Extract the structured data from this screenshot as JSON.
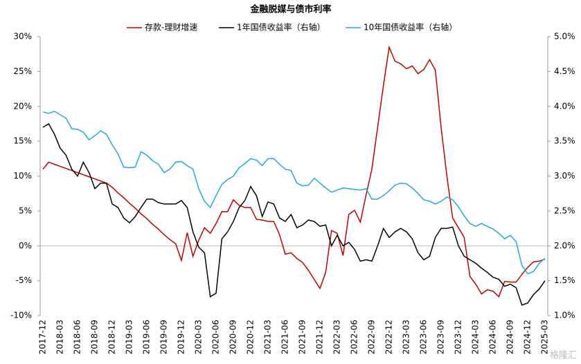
{
  "chart_data": {
    "type": "line",
    "title": "金融脱媒与债市利率",
    "watermark": "格隆汇",
    "categories": [
      "2017-12",
      null,
      null,
      "2018-03",
      null,
      null,
      "2018-06",
      null,
      null,
      "2018-09",
      null,
      null,
      "2018-12",
      null,
      null,
      "2019-03",
      null,
      null,
      "2019-06",
      null,
      null,
      "2019-09",
      null,
      null,
      "2019-12",
      null,
      null,
      "2020-03",
      null,
      null,
      "2020-06",
      null,
      null,
      "2020-09",
      null,
      null,
      "2020-12",
      null,
      null,
      "2021-03",
      null,
      null,
      "2021-06",
      null,
      null,
      "2021-09",
      null,
      null,
      "2021-12",
      null,
      null,
      "2022-03",
      null,
      null,
      "2022-06",
      null,
      null,
      "2022-09",
      null,
      null,
      "2022-12",
      null,
      null,
      "2023-03",
      null,
      null,
      "2023-06",
      null,
      null,
      "2023-09",
      null,
      null,
      "2023-12",
      null,
      null,
      "2024-03",
      null,
      null,
      "2024-06",
      null,
      null,
      "2024-09",
      null,
      null,
      "2024-12",
      null,
      null,
      "2025-03"
    ],
    "series": [
      {
        "name": "存款-理财增速",
        "color": "#c00000",
        "axis": "y",
        "values": [
          11,
          12,
          11.7,
          11.4,
          11.1,
          10.8,
          10.5,
          10.2,
          9.9,
          9.6,
          9.3,
          9.0,
          8.4,
          7.6,
          6.9,
          6.1,
          5.4,
          4.6,
          3.9,
          3.1,
          2.4,
          1.6,
          0.9,
          0.3,
          -2.1,
          1.9,
          -1.5,
          0.8,
          2.6,
          1.8,
          3.2,
          4.9,
          4.9,
          6.6,
          5.8,
          5.5,
          5.5,
          3.8,
          3.7,
          3.5,
          3.5,
          1.6,
          -1.2,
          -1.0,
          -1.8,
          -2.4,
          -3.5,
          -4.8,
          -6.1,
          -3.8,
          2.2,
          1.8,
          -1.4,
          4.5,
          5.1,
          3.4,
          7.3,
          11,
          17,
          23,
          28.5,
          26.5,
          26.1,
          25.4,
          25.8,
          24.7,
          25.3,
          26.7,
          25.2,
          17,
          10,
          4,
          2.6,
          1.2,
          -4.4,
          -5.5,
          -6.9,
          -6.3,
          -6.5,
          -7.3,
          -5.1,
          -5.2,
          -5.2,
          -4.1,
          -3.1,
          -2.3,
          -2.2,
          -1.9
        ]
      },
      {
        "name": "1年国债收益率（右轴）",
        "color": "#000000",
        "axis": "y2",
        "values": [
          3.7,
          3.75,
          3.6,
          3.4,
          3.3,
          3.1,
          3.0,
          3.2,
          3.05,
          2.82,
          2.9,
          2.9,
          2.6,
          2.55,
          2.4,
          2.33,
          2.42,
          2.55,
          2.67,
          2.67,
          2.62,
          2.6,
          2.6,
          2.6,
          2.65,
          2.55,
          2.2,
          1.98,
          1.9,
          1.27,
          1.32,
          2.1,
          2.2,
          2.35,
          2.55,
          2.65,
          2.85,
          2.72,
          2.42,
          2.63,
          2.6,
          2.4,
          2.35,
          2.45,
          2.26,
          2.3,
          2.37,
          2.35,
          2.28,
          2.3,
          2.0,
          2.15,
          2.0,
          2.05,
          1.95,
          1.78,
          1.8,
          1.78,
          2.0,
          2.25,
          2.12,
          2.2,
          2.25,
          2.2,
          2.1,
          1.9,
          1.8,
          1.85,
          2.12,
          2.25,
          2.25,
          2.27,
          2.0,
          1.85,
          1.8,
          1.75,
          1.68,
          1.62,
          1.55,
          1.52,
          1.42,
          1.45,
          1.4,
          1.15,
          1.18,
          1.3,
          1.38,
          1.5
        ]
      },
      {
        "name": "10年国债收益率（右轴）",
        "color": "#1fa9e1",
        "axis": "y2",
        "values": [
          3.92,
          3.9,
          3.93,
          3.88,
          3.83,
          3.68,
          3.67,
          3.63,
          3.52,
          3.58,
          3.65,
          3.6,
          3.45,
          3.32,
          3.13,
          3.12,
          3.13,
          3.35,
          3.3,
          3.22,
          3.17,
          3.05,
          3.1,
          3.2,
          3.21,
          3.15,
          3.1,
          2.82,
          2.64,
          2.55,
          2.72,
          2.88,
          2.95,
          3.0,
          3.12,
          3.18,
          3.25,
          3.23,
          3.15,
          3.25,
          3.25,
          3.17,
          3.1,
          3.08,
          2.9,
          2.86,
          2.87,
          2.97,
          2.9,
          2.83,
          2.77,
          2.8,
          2.83,
          2.82,
          2.81,
          2.8,
          2.82,
          2.67,
          2.67,
          2.72,
          2.79,
          2.87,
          2.9,
          2.89,
          2.83,
          2.75,
          2.66,
          2.64,
          2.6,
          2.64,
          2.7,
          2.66,
          2.56,
          2.43,
          2.32,
          2.28,
          2.32,
          2.28,
          2.24,
          2.18,
          2.1,
          2.15,
          2.06,
          1.72,
          1.6,
          1.63,
          1.75,
          1.82
        ]
      }
    ],
    "ylim": [
      -10,
      30
    ],
    "yticks": [
      {
        "value": -10,
        "label": "-10%"
      },
      {
        "value": -5,
        "label": "-5%"
      },
      {
        "value": 0,
        "label": "0%"
      },
      {
        "value": 5,
        "label": "5%"
      },
      {
        "value": 10,
        "label": "10%"
      },
      {
        "value": 15,
        "label": "15%"
      },
      {
        "value": 20,
        "label": "20%"
      },
      {
        "value": 25,
        "label": "25%"
      },
      {
        "value": 30,
        "label": "30%"
      }
    ],
    "y2lim": [
      1.0,
      5.0
    ],
    "y2ticks": [
      {
        "value": 1.0,
        "label": "1.0%"
      },
      {
        "value": 1.5,
        "label": "1.5%"
      },
      {
        "value": 2.0,
        "label": "2.0%"
      },
      {
        "value": 2.5,
        "label": "2.5%"
      },
      {
        "value": 3.0,
        "label": "3.0%"
      },
      {
        "value": 3.5,
        "label": "3.5%"
      },
      {
        "value": 4.0,
        "label": "4.0%"
      },
      {
        "value": 4.5,
        "label": "4.5%"
      },
      {
        "value": 5.0,
        "label": "5.0%"
      }
    ],
    "zero_line": true,
    "legend": "top"
  }
}
